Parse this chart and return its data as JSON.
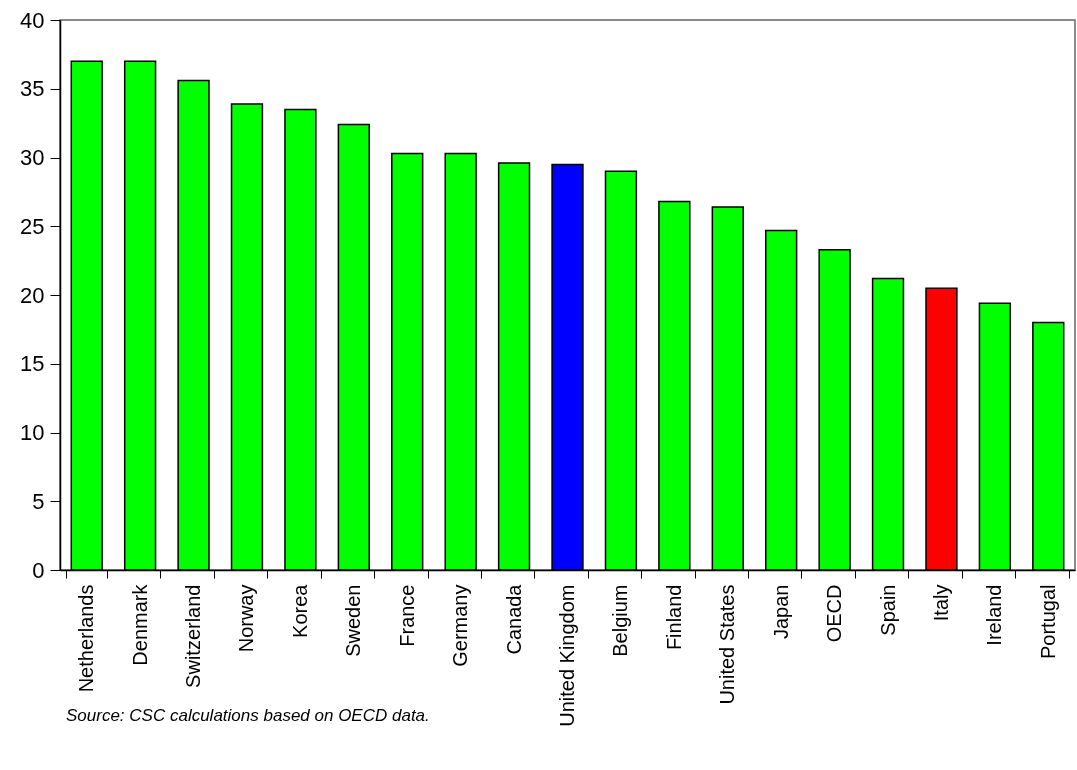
{
  "chart_data": {
    "type": "bar",
    "categories": [
      "Netherlands",
      "Denmark",
      "Switzerland",
      "Norway",
      "Korea",
      "Sweden",
      "France",
      "Germany",
      "Canada",
      "United Kingdom",
      "Belgium",
      "Finland",
      "United States",
      "Japan",
      "OECD",
      "Spain",
      "Italy",
      "Ireland",
      "Portugal"
    ],
    "values": [
      37.0,
      37.0,
      35.6,
      33.9,
      33.5,
      32.4,
      30.3,
      30.3,
      29.6,
      29.5,
      29.0,
      26.8,
      26.4,
      24.7,
      23.3,
      21.2,
      20.5,
      19.4,
      18.0
    ],
    "colors": [
      "#00ff00",
      "#00ff00",
      "#00ff00",
      "#00ff00",
      "#00ff00",
      "#00ff00",
      "#00ff00",
      "#00ff00",
      "#00ff00",
      "#0000ff",
      "#00ff00",
      "#00ff00",
      "#00ff00",
      "#00ff00",
      "#00ff00",
      "#00ff00",
      "#ff0000",
      "#00ff00",
      "#00ff00"
    ],
    "ylim": [
      0,
      40
    ],
    "yticks": [
      0,
      5,
      10,
      15,
      20,
      25,
      30,
      35,
      40
    ],
    "grid": false,
    "annotations": [
      "Source: CSC calculations based on OECD data."
    ]
  }
}
